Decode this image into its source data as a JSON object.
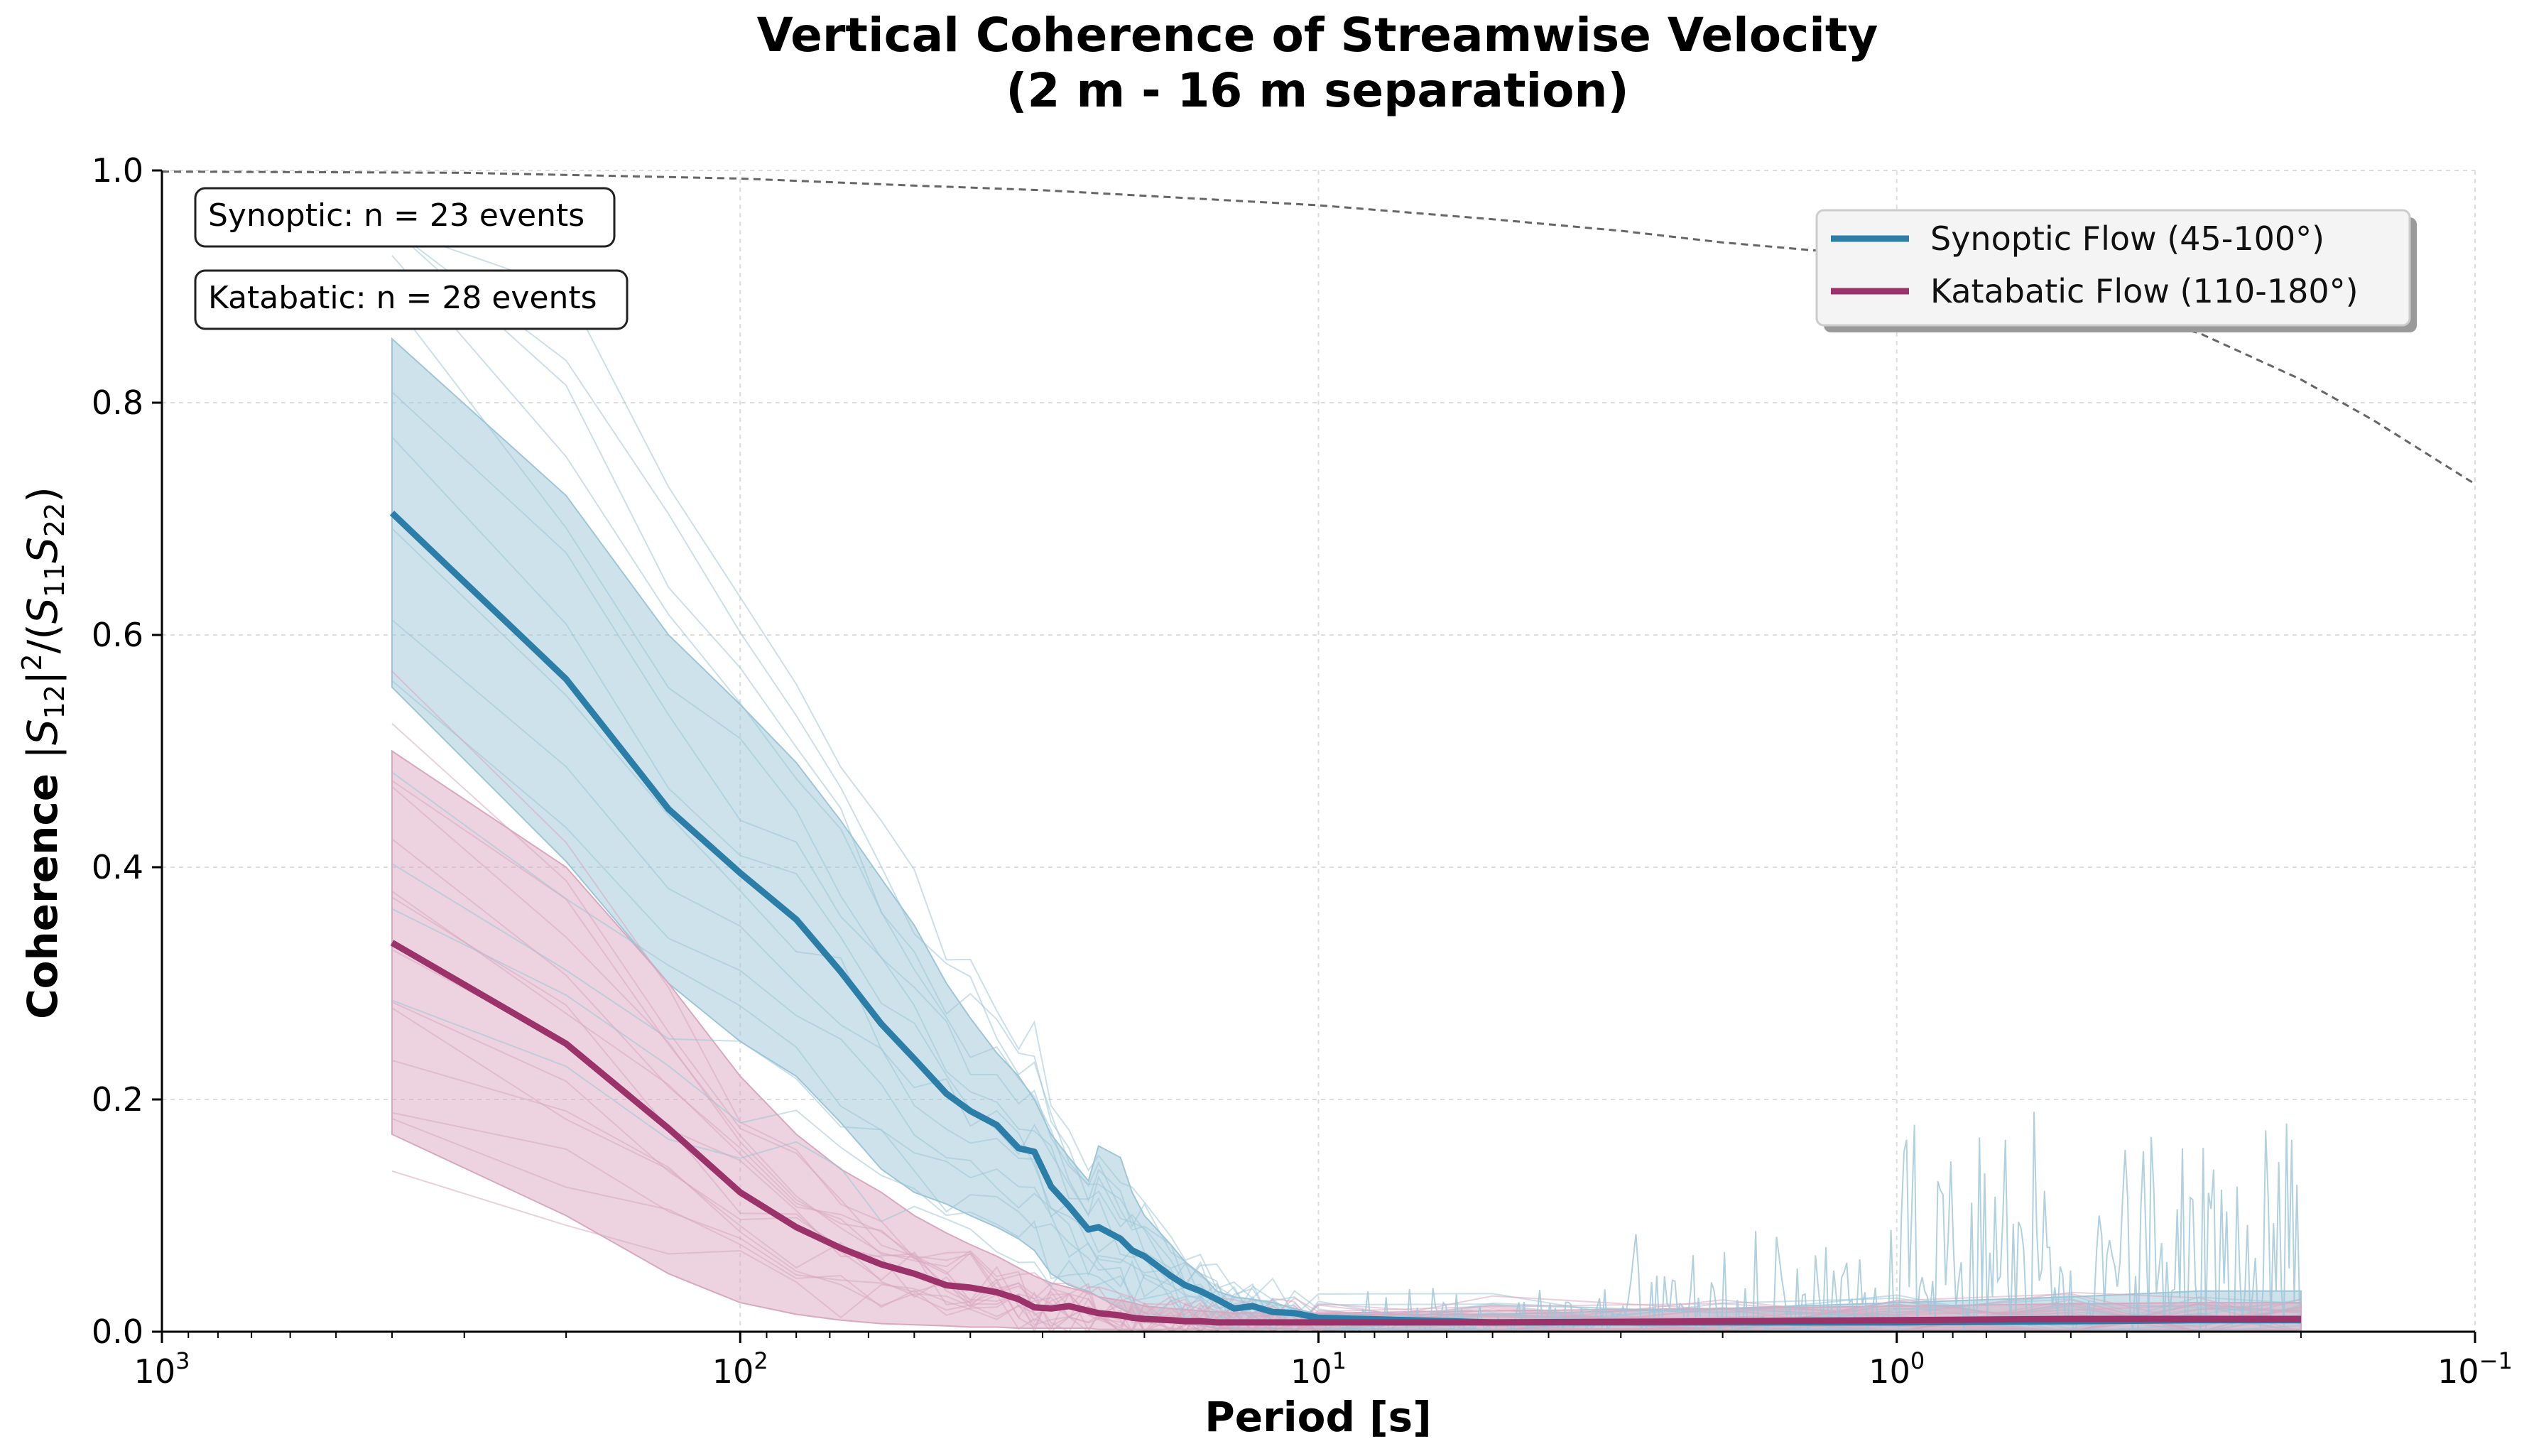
{
  "chart_data": {
    "type": "line",
    "title": "Vertical Coherence of Streamwise Velocity",
    "subtitle": "(2 m - 16 m separation)",
    "xlabel": "Period [s]",
    "ylabel": "Coherence |S12|²/(S11S22)",
    "x_scale": "log",
    "x_reversed": true,
    "xlim": [
      1000,
      0.1
    ],
    "ylim": [
      0,
      1
    ],
    "x_ticks": [
      {
        "value": 1000,
        "base": "10",
        "exp": "3"
      },
      {
        "value": 100,
        "base": "10",
        "exp": "2"
      },
      {
        "value": 10,
        "base": "10",
        "exp": "1"
      },
      {
        "value": 1,
        "base": "10",
        "exp": "0"
      },
      {
        "value": 0.1,
        "base": "10",
        "exp": "−1"
      }
    ],
    "y_ticks": [
      "0.0",
      "0.2",
      "0.4",
      "0.6",
      "0.8",
      "1.0"
    ],
    "grid": true,
    "legend": {
      "placement": "top-right",
      "entries": [
        {
          "label": "Synoptic Flow (45-100°)",
          "color": "#2a7ea8"
        },
        {
          "label": "Katabatic Flow (110-180°)",
          "color": "#9b336a"
        }
      ]
    },
    "annotations": [
      "Synoptic: n = 23 events",
      "Katabatic: n = 28 events"
    ],
    "series": [
      {
        "name": "Synoptic Flow (45-100°)",
        "color": "#2a7ea8",
        "band_color": "#9dc6d7",
        "x": [
          400,
          200,
          133,
          100,
          80,
          67,
          57,
          50,
          44,
          40,
          36,
          33,
          31,
          29,
          27,
          25,
          24,
          22,
          21,
          20,
          18,
          17,
          16,
          15,
          14,
          13,
          12,
          11,
          10,
          5,
          2,
          1,
          0.5,
          0.3,
          0.2
        ],
        "mean": [
          0.705,
          0.562,
          0.45,
          0.395,
          0.355,
          0.31,
          0.265,
          0.235,
          0.205,
          0.19,
          0.178,
          0.158,
          0.155,
          0.125,
          0.108,
          0.088,
          0.09,
          0.08,
          0.07,
          0.065,
          0.048,
          0.04,
          0.035,
          0.028,
          0.02,
          0.022,
          0.017,
          0.016,
          0.012,
          0.008,
          0.008,
          0.008,
          0.009,
          0.01,
          0.01
        ],
        "upper": [
          0.855,
          0.72,
          0.6,
          0.54,
          0.49,
          0.44,
          0.39,
          0.35,
          0.3,
          0.27,
          0.24,
          0.22,
          0.2,
          0.17,
          0.15,
          0.13,
          0.16,
          0.15,
          0.12,
          0.1,
          0.075,
          0.06,
          0.05,
          0.035,
          0.03,
          0.028,
          0.025,
          0.02,
          0.015,
          0.015,
          0.02,
          0.025,
          0.03,
          0.035,
          0.035
        ],
        "lower": [
          0.555,
          0.405,
          0.3,
          0.25,
          0.22,
          0.18,
          0.14,
          0.12,
          0.11,
          0.1,
          0.09,
          0.08,
          0.07,
          0.05,
          0.04,
          0.035,
          0.03,
          0.02,
          0.015,
          0.01,
          0.01,
          0.008,
          0.005,
          0.003,
          0.003,
          0.003,
          0.003,
          0.002,
          0.002,
          0.001,
          0.001,
          0.001,
          0.001,
          0.001,
          0.001
        ]
      },
      {
        "name": "Katabatic Flow (110-180°)",
        "color": "#9b336a",
        "band_color": "#d9a8bf",
        "x": [
          400,
          200,
          133,
          100,
          80,
          67,
          57,
          50,
          44,
          40,
          36,
          33,
          31,
          29,
          27,
          25,
          24,
          22,
          21,
          20,
          18,
          17,
          16,
          15,
          14,
          13,
          12,
          11,
          10,
          5,
          2,
          1,
          0.5,
          0.3,
          0.2
        ],
        "mean": [
          0.335,
          0.248,
          0.175,
          0.12,
          0.09,
          0.072,
          0.058,
          0.05,
          0.04,
          0.038,
          0.034,
          0.028,
          0.021,
          0.02,
          0.022,
          0.018,
          0.016,
          0.014,
          0.012,
          0.011,
          0.01,
          0.009,
          0.009,
          0.008,
          0.008,
          0.008,
          0.008,
          0.008,
          0.008,
          0.008,
          0.009,
          0.01,
          0.011,
          0.011,
          0.011
        ],
        "upper": [
          0.5,
          0.4,
          0.3,
          0.22,
          0.17,
          0.14,
          0.12,
          0.1,
          0.085,
          0.075,
          0.065,
          0.055,
          0.048,
          0.042,
          0.038,
          0.034,
          0.03,
          0.027,
          0.025,
          0.022,
          0.02,
          0.019,
          0.018,
          0.017,
          0.016,
          0.016,
          0.016,
          0.016,
          0.016,
          0.018,
          0.02,
          0.022,
          0.024,
          0.025,
          0.025
        ],
        "lower": [
          0.17,
          0.1,
          0.05,
          0.025,
          0.015,
          0.01,
          0.007,
          0.006,
          0.005,
          0.004,
          0.004,
          0.003,
          0.003,
          0.003,
          0.003,
          0.003,
          0.002,
          0.002,
          0.002,
          0.002,
          0.002,
          0.002,
          0.002,
          0.002,
          0.002,
          0.002,
          0.002,
          0.002,
          0.002,
          0.002,
          0.002,
          0.002,
          0.002,
          0.002,
          0.002
        ]
      },
      {
        "x": [
          1000,
          300,
          100,
          50,
          30,
          10,
          5,
          3,
          2,
          1,
          0.7,
          0.5,
          0.4,
          0.3,
          0.2,
          0.15,
          0.1
        ],
        "values": [
          0.999,
          0.998,
          0.993,
          0.987,
          0.983,
          0.97,
          0.958,
          0.948,
          0.938,
          0.925,
          0.91,
          0.89,
          0.875,
          0.86,
          0.82,
          0.785,
          0.73
        ]
      }
    ]
  }
}
